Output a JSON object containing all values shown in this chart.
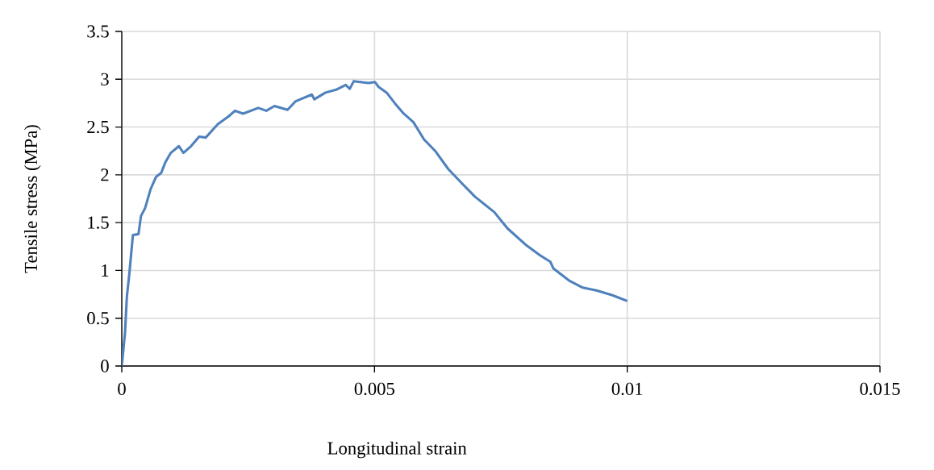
{
  "chart_data": {
    "type": "line",
    "xlabel": "Longitudinal strain",
    "ylabel": "Tensile stress (MPa)",
    "x": [
      0,
      6.4e-05,
      0.0001,
      0.00015,
      0.00022,
      0.00033,
      0.00038,
      0.00046,
      0.00057,
      0.00068,
      0.00078,
      0.00086,
      0.00097,
      0.00113,
      0.00122,
      0.00137,
      0.00153,
      0.00166,
      0.0019,
      0.00211,
      0.00224,
      0.0024,
      0.0027,
      0.00286,
      0.00302,
      0.00328,
      0.00344,
      0.00376,
      0.00381,
      0.00403,
      0.00424,
      0.00443,
      0.00451,
      0.00459,
      0.00488,
      0.00501,
      0.00508,
      0.00524,
      0.0054,
      0.00556,
      0.00577,
      0.00598,
      0.0062,
      0.00646,
      0.00673,
      0.00699,
      0.00737,
      0.00763,
      0.00801,
      0.00827,
      0.00848,
      0.00854,
      0.00886,
      0.00912,
      0.00939,
      0.00971,
      0.01
    ],
    "series": [
      {
        "color": "#4f81bd",
        "values": [
          0,
          0.35,
          0.72,
          0.97,
          1.37,
          1.38,
          1.57,
          1.65,
          1.85,
          1.98,
          2.02,
          2.13,
          2.23,
          2.3,
          2.23,
          2.3,
          2.4,
          2.39,
          2.53,
          2.61,
          2.67,
          2.64,
          2.7,
          2.67,
          2.72,
          2.68,
          2.77,
          2.84,
          2.79,
          2.86,
          2.89,
          2.94,
          2.9,
          2.98,
          2.96,
          2.97,
          2.92,
          2.86,
          2.75,
          2.65,
          2.55,
          2.37,
          2.25,
          2.06,
          1.91,
          1.77,
          1.61,
          1.44,
          1.26,
          1.16,
          1.09,
          1.02,
          0.89,
          0.82,
          0.79,
          0.74,
          0.68
        ]
      }
    ],
    "xlim": [
      0,
      0.015
    ],
    "xticks": [
      0,
      0.005,
      0.01,
      0.015
    ],
    "ylim": [
      0,
      3.5
    ],
    "yticks": [
      0,
      0.5,
      1,
      1.5,
      2,
      2.5,
      3,
      3.5
    ],
    "grid": true
  }
}
